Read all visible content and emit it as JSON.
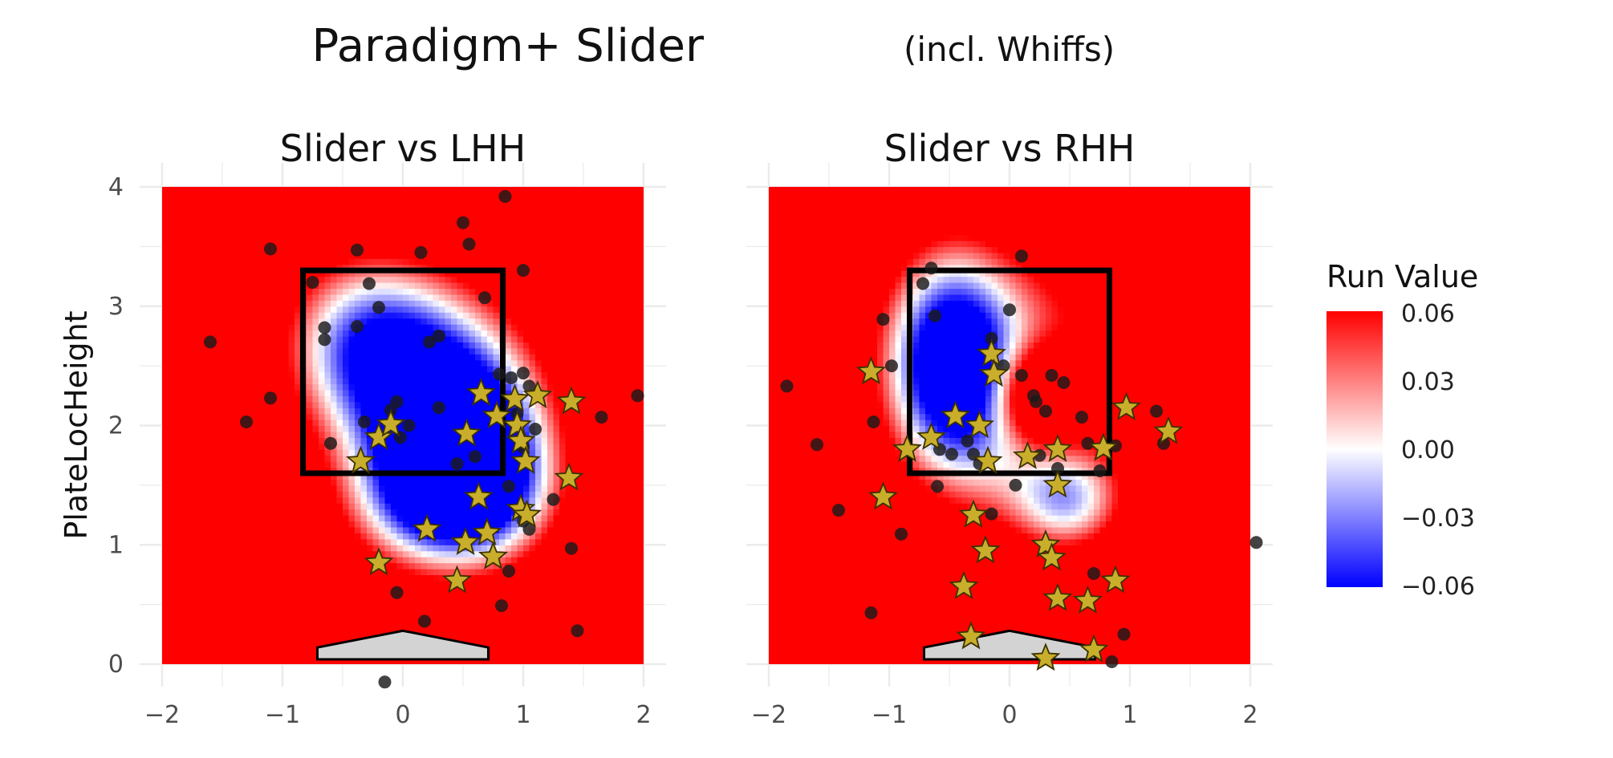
{
  "title": "Paradigm+ Slider",
  "title_note": "(incl. Whiffs)",
  "colors": {
    "positive": "#ff0000",
    "zero": "#ffffff",
    "negative": "#0000ff",
    "star": "#c9ae2c",
    "dot": "#1a1a1a",
    "plate": "#d3d3d3"
  },
  "legend": {
    "title": "Run Value",
    "ticks": [
      "0.06",
      "0.03",
      "0.00",
      "−0.03",
      "−0.06"
    ]
  },
  "chart_data": [
    {
      "type": "heatmap",
      "title": "Slider vs LHH",
      "xlabel": "",
      "ylabel": "PlateLocHeight",
      "xlim": [
        -2,
        2
      ],
      "ylim": [
        0,
        4
      ],
      "x_ticks": [
        "−2",
        "−1",
        "0",
        "1",
        "2"
      ],
      "y_ticks": [
        "0",
        "1",
        "2",
        "3",
        "4"
      ],
      "grid": true,
      "strike_zone": {
        "x": [
          -0.83,
          0.83
        ],
        "y": [
          1.6,
          3.3
        ]
      },
      "home_plate": true,
      "surface": [
        {
          "x": 0.35,
          "y": 2.05,
          "sx": 0.55,
          "sy": 0.7,
          "amp": -0.11
        },
        {
          "x": 0.35,
          "y": 1.35,
          "sx": 0.55,
          "sy": 0.4,
          "amp": -0.06
        },
        {
          "x": -0.35,
          "y": 2.7,
          "sx": 0.5,
          "sy": 0.55,
          "amp": -0.07
        },
        {
          "x": 0.75,
          "y": 1.7,
          "sx": 0.4,
          "sy": 0.5,
          "amp": -0.04
        }
      ],
      "balls": [
        [
          -1.6,
          2.7
        ],
        [
          -1.1,
          3.48
        ],
        [
          -1.1,
          2.23
        ],
        [
          -1.3,
          2.03
        ],
        [
          -0.75,
          3.2
        ],
        [
          -0.65,
          2.82
        ],
        [
          -0.65,
          2.72
        ],
        [
          -0.6,
          1.85
        ],
        [
          -0.38,
          3.47
        ],
        [
          -0.38,
          2.83
        ],
        [
          -0.32,
          2.03
        ],
        [
          -0.28,
          3.19
        ],
        [
          -0.2,
          2.99
        ],
        [
          -0.1,
          2.13
        ],
        [
          -0.05,
          2.2
        ],
        [
          0.05,
          2.0
        ],
        [
          -0.02,
          1.9
        ],
        [
          0.15,
          3.45
        ],
        [
          0.22,
          2.7
        ],
        [
          0.3,
          2.75
        ],
        [
          0.3,
          2.15
        ],
        [
          0.5,
          3.7
        ],
        [
          0.55,
          3.52
        ],
        [
          0.45,
          1.68
        ],
        [
          0.6,
          1.74
        ],
        [
          0.68,
          3.07
        ],
        [
          0.8,
          2.43
        ],
        [
          0.9,
          2.4
        ],
        [
          0.95,
          2.1
        ],
        [
          1.0,
          2.44
        ],
        [
          1.05,
          2.33
        ],
        [
          1.0,
          3.3
        ],
        [
          1.1,
          1.97
        ],
        [
          1.0,
          1.82
        ],
        [
          0.88,
          1.49
        ],
        [
          1.0,
          1.2
        ],
        [
          1.05,
          1.13
        ],
        [
          0.88,
          0.78
        ],
        [
          0.82,
          0.49
        ],
        [
          0.85,
          3.92
        ],
        [
          1.25,
          1.38
        ],
        [
          1.4,
          0.97
        ],
        [
          1.65,
          2.07
        ],
        [
          1.95,
          2.25
        ],
        [
          1.45,
          0.28
        ],
        [
          -0.05,
          0.6
        ],
        [
          0.18,
          0.36
        ],
        [
          -0.15,
          -0.15
        ]
      ],
      "whiffs": [
        [
          -0.35,
          1.7
        ],
        [
          -0.2,
          1.9
        ],
        [
          -0.1,
          2.01
        ],
        [
          0.2,
          1.13
        ],
        [
          0.45,
          0.7
        ],
        [
          0.52,
          1.02
        ],
        [
          0.53,
          1.93
        ],
        [
          0.65,
          2.27
        ],
        [
          0.63,
          1.4
        ],
        [
          0.7,
          1.1
        ],
        [
          0.75,
          0.9
        ],
        [
          0.78,
          2.08
        ],
        [
          0.93,
          2.22
        ],
        [
          0.95,
          2.0
        ],
        [
          0.98,
          1.87
        ],
        [
          1.02,
          1.7
        ],
        [
          0.98,
          1.3
        ],
        [
          1.03,
          1.25
        ],
        [
          1.12,
          2.25
        ],
        [
          1.38,
          1.56
        ],
        [
          1.4,
          2.2
        ],
        [
          -0.2,
          0.85
        ]
      ]
    },
    {
      "type": "heatmap",
      "title": "Slider vs RHH",
      "xlabel": "",
      "ylabel": "",
      "xlim": [
        -2,
        2
      ],
      "ylim": [
        0,
        4
      ],
      "x_ticks": [
        "−2",
        "−1",
        "0",
        "1",
        "2"
      ],
      "y_ticks": [],
      "grid": true,
      "strike_zone": {
        "x": [
          -0.83,
          0.83
        ],
        "y": [
          1.6,
          3.3
        ]
      },
      "home_plate": true,
      "surface": [
        {
          "x": -0.5,
          "y": 2.55,
          "sx": 0.38,
          "sy": 0.65,
          "amp": -0.09
        },
        {
          "x": 0.5,
          "y": 1.35,
          "sx": 0.33,
          "sy": 0.3,
          "amp": -0.055
        },
        {
          "x": 0.0,
          "y": 1.8,
          "sx": 0.5,
          "sy": 0.55,
          "amp": -0.025
        },
        {
          "x": 0.25,
          "y": 2.25,
          "sx": 0.28,
          "sy": 0.3,
          "amp": 0.07
        },
        {
          "x": 0.15,
          "y": 2.55,
          "sx": 0.8,
          "sy": 0.75,
          "amp": -0.045
        }
      ],
      "balls": [
        [
          -1.85,
          2.33
        ],
        [
          -1.6,
          1.84
        ],
        [
          -1.42,
          1.29
        ],
        [
          -1.15,
          0.43
        ],
        [
          -1.13,
          2.03
        ],
        [
          -0.9,
          1.09
        ],
        [
          -1.05,
          2.89
        ],
        [
          -0.98,
          2.5
        ],
        [
          -0.72,
          3.19
        ],
        [
          -0.65,
          3.32
        ],
        [
          -0.62,
          2.92
        ],
        [
          -0.58,
          1.8
        ],
        [
          -0.6,
          1.49
        ],
        [
          -0.48,
          1.76
        ],
        [
          -0.35,
          1.87
        ],
        [
          -0.3,
          1.76
        ],
        [
          -0.25,
          1.68
        ],
        [
          -0.15,
          1.26
        ],
        [
          -0.15,
          2.73
        ],
        [
          -0.05,
          2.5
        ],
        [
          0.0,
          2.97
        ],
        [
          0.1,
          2.42
        ],
        [
          0.2,
          2.25
        ],
        [
          0.22,
          2.2
        ],
        [
          0.35,
          2.42
        ],
        [
          0.45,
          2.36
        ],
        [
          0.3,
          2.12
        ],
        [
          0.05,
          1.5
        ],
        [
          0.25,
          1.75
        ],
        [
          0.4,
          1.64
        ],
        [
          0.6,
          2.07
        ],
        [
          0.65,
          1.85
        ],
        [
          0.75,
          1.62
        ],
        [
          0.88,
          1.83
        ],
        [
          1.22,
          2.12
        ],
        [
          1.28,
          1.85
        ],
        [
          0.7,
          0.76
        ],
        [
          0.95,
          0.25
        ],
        [
          0.85,
          0.02
        ],
        [
          2.05,
          1.02
        ],
        [
          0.1,
          3.42
        ]
      ],
      "whiffs": [
        [
          -1.15,
          2.45
        ],
        [
          -0.85,
          1.8
        ],
        [
          -1.05,
          1.4
        ],
        [
          -0.65,
          1.9
        ],
        [
          -0.45,
          2.08
        ],
        [
          -0.25,
          2.0
        ],
        [
          -0.18,
          1.7
        ],
        [
          -0.3,
          1.25
        ],
        [
          -0.2,
          0.95
        ],
        [
          -0.38,
          0.65
        ],
        [
          -0.32,
          0.23
        ],
        [
          -0.15,
          2.6
        ],
        [
          -0.13,
          2.43
        ],
        [
          0.15,
          1.74
        ],
        [
          0.4,
          1.8
        ],
        [
          0.4,
          1.5
        ],
        [
          0.78,
          1.81
        ],
        [
          0.3,
          1.0
        ],
        [
          0.35,
          0.89
        ],
        [
          0.4,
          0.55
        ],
        [
          0.65,
          0.53
        ],
        [
          0.88,
          0.7
        ],
        [
          0.7,
          0.12
        ],
        [
          0.3,
          0.05
        ],
        [
          0.97,
          2.15
        ],
        [
          1.32,
          1.95
        ]
      ]
    }
  ]
}
